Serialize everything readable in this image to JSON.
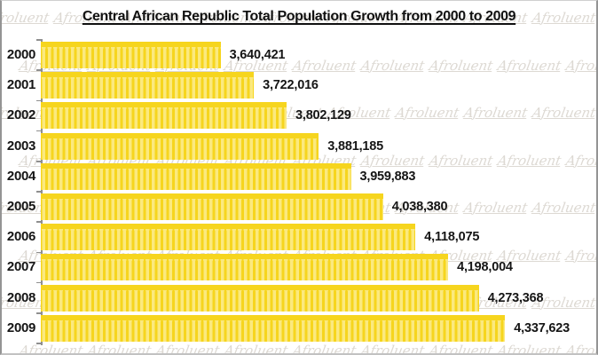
{
  "chart_data": {
    "type": "bar",
    "orientation": "horizontal",
    "title": "Central African Republic Total Population Growth from 2000 to 2009",
    "categories": [
      "2000",
      "2001",
      "2002",
      "2003",
      "2004",
      "2005",
      "2006",
      "2007",
      "2008",
      "2009"
    ],
    "values": [
      3640421,
      3722016,
      3802129,
      3881185,
      3959883,
      4038380,
      4118075,
      4198004,
      4273368,
      4337623
    ],
    "value_labels": [
      "3,640,421",
      "3,722,016",
      "3,802,129",
      "3,881,185",
      "3,959,883",
      "4,038,380",
      "4,118,075",
      "4,198,004",
      "4,273,368",
      "4,337,623"
    ],
    "xlabel": "",
    "ylabel": "",
    "xlim": [
      3200000,
      4400000
    ],
    "grid": false,
    "legend": null,
    "bar_color": "#F6D51E",
    "bar_stripe_color": "#FBE97F",
    "axis_color": "#8f8f8f",
    "text_color": "#151515",
    "watermark_text": "Afroluent",
    "watermark_color": "#ddd9d3"
  }
}
